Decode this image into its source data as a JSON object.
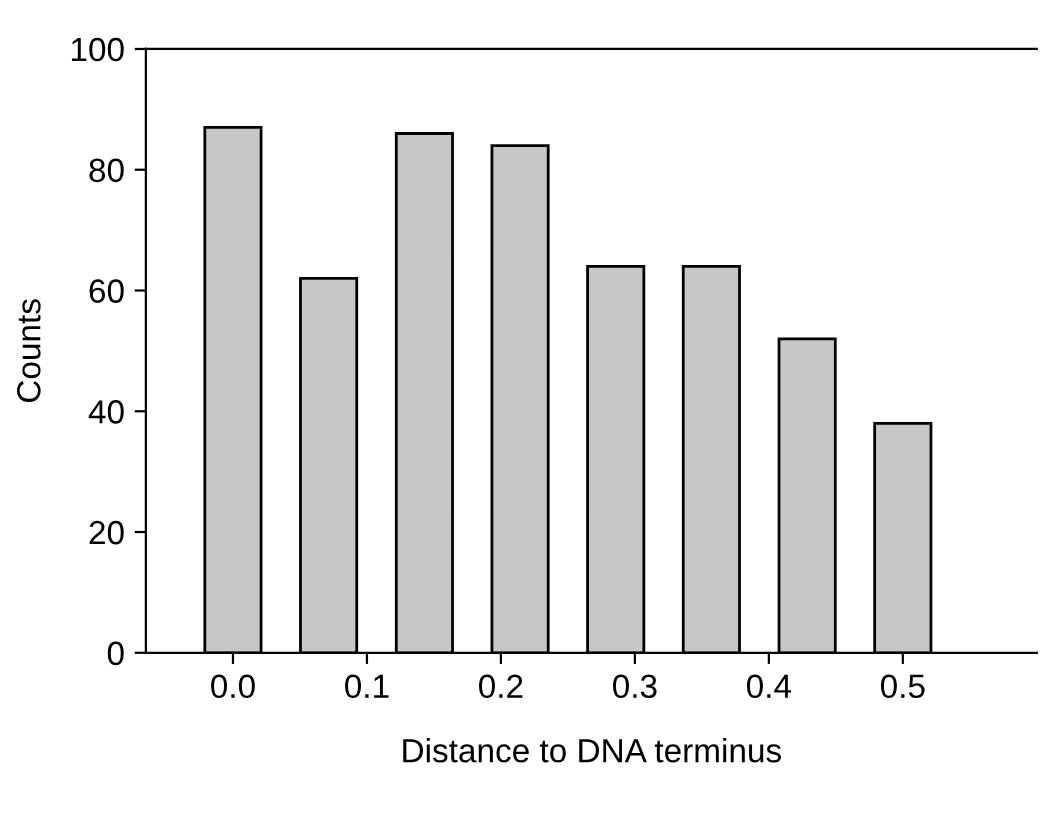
{
  "chart_data": {
    "type": "bar",
    "xlabel": "Distance to DNA terminus",
    "ylabel": "Counts",
    "x": [
      0,
      0.0714,
      0.1429,
      0.2143,
      0.2857,
      0.3571,
      0.4286,
      0.5
    ],
    "values": [
      87,
      62,
      86,
      84,
      64,
      64,
      52,
      38
    ],
    "color": "#c6c7c6",
    "xlim": [
      -0.065,
      0.6
    ],
    "xticks": [
      {
        "value": 0,
        "label": "0.0"
      },
      0.1,
      0.2,
      0.3,
      0.4,
      0.5
    ],
    "ylim": [
      0,
      100
    ],
    "yticks": [
      0,
      20,
      40,
      60,
      80,
      100
    ],
    "grid": false,
    "legend": false
  }
}
